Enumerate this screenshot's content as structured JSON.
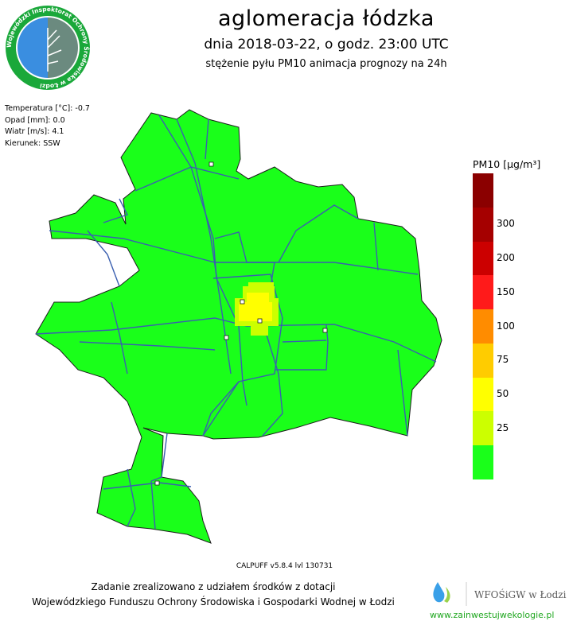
{
  "header": {
    "title": "aglomeracja łódzka",
    "subtitle": "dnia 2018-03-22, o godz. 23:00 UTC",
    "description": "stężenie pyłu PM10 animacja prognozy na 24h"
  },
  "logo": {
    "text": "Wojewódzki Inspektorat Ochrony Środowiska w Łodzi"
  },
  "meteo": {
    "temperature": "Temperatura [°C]: -0.7",
    "precipitation": "Opad [mm]: 0.0",
    "wind": "Wiatr [m/s]: 4.1",
    "direction": "Kierunek: SSW"
  },
  "legend": {
    "title": "PM10 [µg/m³]",
    "classes": [
      {
        "label": "",
        "color": "#8b0000"
      },
      {
        "label": "300",
        "color": "#a50000"
      },
      {
        "label": "200",
        "color": "#cc0000"
      },
      {
        "label": "150",
        "color": "#ff1a1a"
      },
      {
        "label": "100",
        "color": "#ff8c00"
      },
      {
        "label": "75",
        "color": "#ffcc00"
      },
      {
        "label": "50",
        "color": "#ffff00"
      },
      {
        "label": "25",
        "color": "#ccff00"
      },
      {
        "label": "",
        "color": "#1aff1a"
      }
    ]
  },
  "model": "CALPUFF v5.8.4 lvl 130731",
  "footer": {
    "line1": "Zadanie zrealizowano z udziałem środków z dotacji",
    "line2": "Wojewódzkiego Funduszu Ochrony Środowiska i Gospodarki Wodnej w Łodzi",
    "partner": "WFOŚiGW w Łodzi",
    "url": "www.zainwestujwekologie.pl"
  },
  "colors": {
    "map_fill": "#1aff1a",
    "map_border": "#1c1c1c",
    "roads": "#3a5fb0",
    "hotspot_yellow": "#ffff00",
    "hotspot_lime": "#ccff00"
  }
}
